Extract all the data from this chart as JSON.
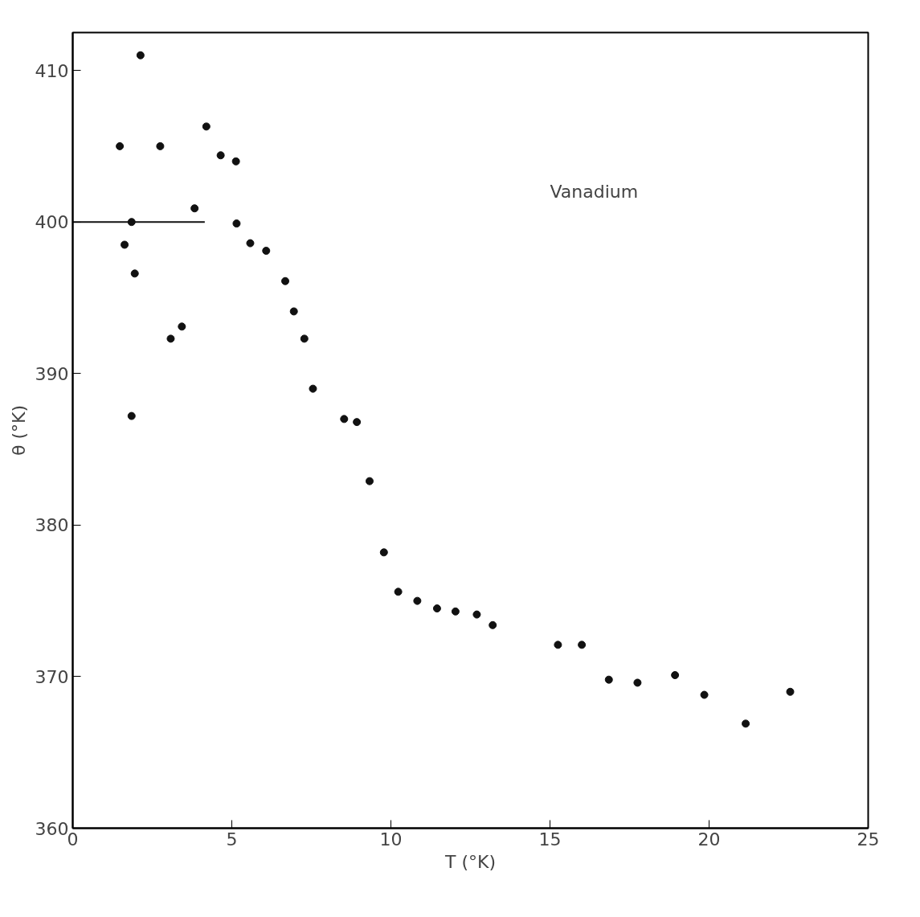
{
  "chart_data": {
    "type": "scatter",
    "xlabel": "T (°K)",
    "ylabel": "θ (°K)",
    "annotations": [
      "Vanadium"
    ],
    "xlim": [
      0,
      25
    ],
    "ylim": [
      360,
      412.5
    ],
    "xticks": [
      0,
      5,
      10,
      15,
      20,
      25
    ],
    "yticks": [
      360,
      370,
      380,
      390,
      400,
      410
    ],
    "grid": false,
    "marker": "circle",
    "series": [
      {
        "color": "#111111",
        "x": [
          1.48,
          1.63,
          1.85,
          1.85,
          1.95,
          2.13,
          2.75,
          3.08,
          3.43,
          3.83,
          4.2,
          4.65,
          5.13,
          5.15,
          5.58,
          6.08,
          6.68,
          6.95,
          7.28,
          7.55,
          8.53,
          8.93,
          9.33,
          9.78,
          10.23,
          10.83,
          11.45,
          12.03,
          12.7,
          13.2,
          15.25,
          16.0,
          16.85,
          17.75,
          18.93,
          19.85,
          21.15,
          22.55
        ],
        "values": [
          405.0,
          398.5,
          400.0,
          387.2,
          396.6,
          411.0,
          405.0,
          392.3,
          393.1,
          400.9,
          406.3,
          404.4,
          404.0,
          399.9,
          398.6,
          398.1,
          396.1,
          394.1,
          392.3,
          389.0,
          387.0,
          386.8,
          382.9,
          378.2,
          375.6,
          375.0,
          374.5,
          374.3,
          374.1,
          373.4,
          372.1,
          372.1,
          369.8,
          369.6,
          370.1,
          368.8,
          366.9,
          369.0
        ]
      },
      {
        "type": "line",
        "color": "#111111",
        "x": [
          0,
          4.15
        ],
        "values": [
          400,
          400
        ],
        "marker": "none",
        "line_style": "solid"
      }
    ]
  }
}
